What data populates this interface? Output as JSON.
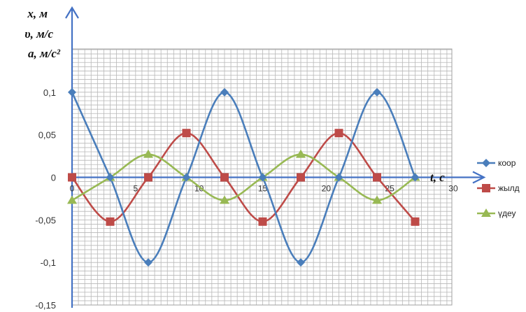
{
  "chart_data": {
    "type": "line",
    "y_axis_title_lines": [
      "x, м",
      "υ, м/с",
      "a, м/с²"
    ],
    "x_axis_title": "t, с",
    "x_ticks": [
      "0",
      "5",
      "10",
      "15",
      "20",
      "25",
      "30"
    ],
    "y_ticks": [
      "0,1",
      "0,05",
      "0",
      "-0,05",
      "-0,1",
      "-0,15"
    ],
    "xlim": [
      0,
      30
    ],
    "ylim": [
      -0.15,
      0.15
    ],
    "grid": true,
    "legend_position": "right",
    "series": [
      {
        "name": "коор",
        "color": "#4a7ebb",
        "marker": "diamond",
        "x": [
          0,
          3,
          6,
          9,
          12,
          15,
          18,
          21,
          24,
          27
        ],
        "y": [
          0.1,
          0,
          -0.1,
          0,
          0.1,
          0,
          -0.1,
          0,
          0.1,
          0
        ]
      },
      {
        "name": "жылд",
        "color": "#be4b48",
        "marker": "square",
        "x": [
          0,
          3,
          6,
          9,
          12,
          15,
          18,
          21,
          24,
          27
        ],
        "y": [
          0,
          -0.052,
          0,
          0.052,
          0,
          -0.052,
          0,
          0.052,
          0,
          -0.052
        ]
      },
      {
        "name": "үдеу",
        "color": "#98b954",
        "marker": "triangle",
        "x": [
          0,
          3,
          6,
          9,
          12,
          15,
          18,
          21,
          24,
          27
        ],
        "y": [
          -0.027,
          0,
          0.027,
          0,
          -0.027,
          0,
          0.027,
          0,
          -0.027,
          0
        ]
      }
    ]
  }
}
